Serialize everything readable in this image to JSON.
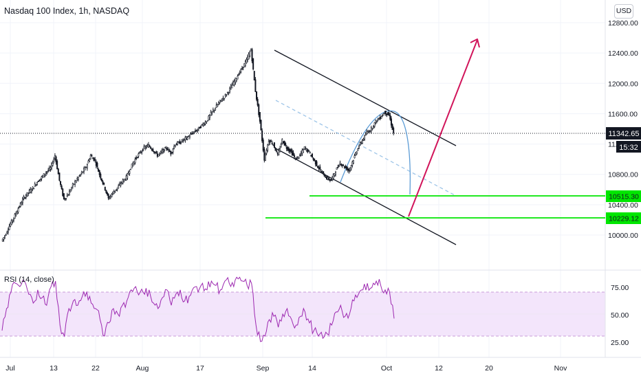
{
  "header": {
    "title": "Nasdaq 100 Index, 1h, NASDAQ",
    "currency": "USD"
  },
  "rsi": {
    "label": "RSI (14, close)"
  },
  "price_badges": {
    "last": "11342.65",
    "countdown": "15:32",
    "level_high": "10515.30",
    "level_low": "10229.12"
  },
  "colors": {
    "candle": "#131722",
    "channel": "#131722",
    "support": "#00e600",
    "arrow": "#d1145a",
    "arc": "#5b9bd5",
    "dashed": "#9ec5e8",
    "rsi": "#9c27b0",
    "rsi_band": "#f3e5fb",
    "grid": "#f0f3fa"
  },
  "chart_data": [
    {
      "type": "line",
      "title": "Nasdaq 100 Index, 1h, NASDAQ",
      "y_ticks": [
        10000,
        10400,
        10800,
        11200,
        11600,
        12000,
        12400,
        12800
      ],
      "ylim": [
        9850,
        12850
      ],
      "x_ticks": [
        "Jul",
        "13",
        "22",
        "Aug",
        "17",
        "Sep",
        "14",
        "Oct",
        "12",
        "20",
        "Nov"
      ],
      "series": [
        {
          "values": [
            9920,
            10020,
            10150,
            10260,
            10380,
            10490,
            10560,
            10620,
            10700,
            10760,
            10830,
            10880,
            11050,
            10720,
            10470,
            10540,
            10660,
            10740,
            10820,
            10900,
            11050,
            10980,
            10800,
            10650,
            10480,
            10560,
            10620,
            10700,
            10760,
            10890,
            11000,
            11080,
            11150,
            11180,
            11120,
            11050,
            11100,
            11150,
            11080,
            11200,
            11220,
            11260,
            11300,
            11350,
            11390,
            11450,
            11500,
            11600,
            11680,
            11760,
            11820,
            11900,
            12000,
            12100,
            12200,
            12300,
            12450,
            11900,
            11500,
            11000,
            11250,
            11200,
            11050,
            11250,
            11150,
            11100,
            11000,
            11050,
            11150,
            11100,
            11000,
            10900,
            10820,
            10750,
            10720,
            10850,
            10950,
            10900,
            10850,
            11000,
            11150,
            11250,
            11350,
            11400,
            11500,
            11550,
            11620,
            11580,
            11342.65
          ]
        }
      ],
      "annotations": {
        "channel_upper": [
          12450,
          11100
        ],
        "channel_lower": [
          11080,
          9770
        ],
        "arrow": [
          10229,
          12900
        ],
        "support_levels": [
          10515.3,
          10229.12
        ]
      }
    },
    {
      "type": "line",
      "title": "RSI (14, close)",
      "y_ticks": [
        25,
        50,
        75
      ],
      "ylim": [
        12,
        88
      ],
      "band": [
        30,
        70
      ],
      "series": [
        {
          "values": [
            35,
            55,
            70,
            78,
            75,
            80,
            68,
            60,
            72,
            65,
            58,
            75,
            80,
            40,
            30,
            55,
            62,
            58,
            66,
            70,
            60,
            55,
            45,
            30,
            42,
            55,
            50,
            58,
            62,
            72,
            75,
            70,
            68,
            72,
            60,
            55,
            65,
            72,
            58,
            68,
            72,
            62,
            66,
            74,
            70,
            78,
            72,
            80,
            76,
            72,
            80,
            78,
            75,
            82,
            80,
            76,
            78,
            40,
            25,
            30,
            45,
            48,
            38,
            50,
            55,
            45,
            40,
            48,
            52,
            42,
            35,
            30,
            28,
            32,
            40,
            52,
            58,
            48,
            50,
            62,
            68,
            72,
            78,
            74,
            80,
            76,
            72,
            70,
            46
          ]
        }
      ]
    }
  ]
}
